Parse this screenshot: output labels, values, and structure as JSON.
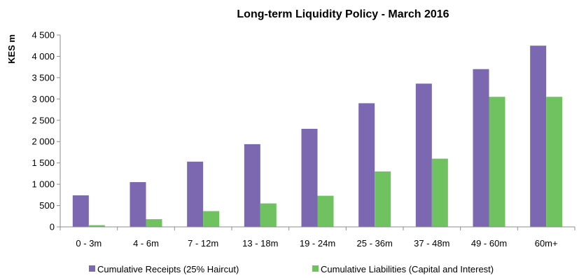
{
  "chart_data": {
    "type": "bar",
    "title": "Long-term Liquidity Policy - March 2016",
    "xlabel": "",
    "ylabel": "KES m",
    "ylim": [
      0,
      4500
    ],
    "yticks": [
      0,
      500,
      1000,
      1500,
      2000,
      2500,
      3000,
      3500,
      4000,
      4500
    ],
    "ytick_labels": [
      "0",
      "500",
      "1 000",
      "1 500",
      "2 000",
      "2 500",
      "3 000",
      "3 500",
      "4 000",
      "4 500"
    ],
    "categories": [
      "0 - 3m",
      "4 - 6m",
      "7 - 12m",
      "13 - 18m",
      "19 - 24m",
      "25 - 36m",
      "37 - 48m",
      "49 - 60m",
      "60m+"
    ],
    "series": [
      {
        "name": "Cumulative Receipts (25% Haircut)",
        "color": "#7b68b0",
        "values": [
          740,
          1050,
          1530,
          1940,
          2300,
          2900,
          3360,
          3700,
          4250
        ]
      },
      {
        "name": "Cumulative Liabilities (Capital and Interest)",
        "color": "#70c160",
        "values": [
          40,
          180,
          370,
          550,
          730,
          1300,
          1600,
          3050,
          3050
        ]
      }
    ],
    "grid": false,
    "legend": "bottom"
  }
}
